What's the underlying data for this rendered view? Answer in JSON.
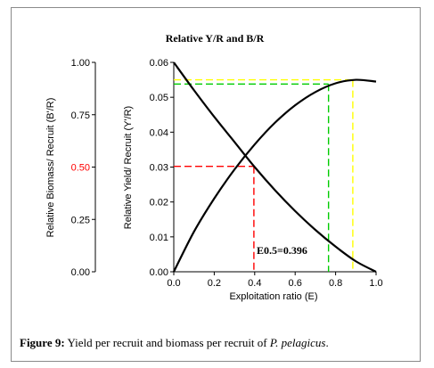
{
  "figure": {
    "caption_label": "Figure 9:",
    "caption_text": "Yield per recruit and biomass per recruit of",
    "caption_species": "P. pelagicus",
    "caption_end": "."
  },
  "chart_data": {
    "type": "line",
    "title": "Relative Y/R and B/R",
    "xlabel": "Exploitation ratio (E)",
    "ylabel_left": "Relative Biomass/ Recruit (B'/R)",
    "ylabel_right": "Relative Yield/ Recruit (Y'/R)",
    "xlim": [
      0.0,
      1.0
    ],
    "x_ticks": [
      "0.0",
      "0.2",
      "0.4",
      "0.6",
      "0.8",
      "1.0"
    ],
    "ylim_biomass": [
      0.0,
      1.0
    ],
    "y_ticks_biomass": [
      "0.00",
      "0.25",
      "0.50",
      "0.75",
      "1.00"
    ],
    "ylim_yield": [
      0.0,
      0.06
    ],
    "y_ticks_yield": [
      "0.00",
      "0.01",
      "0.02",
      "0.03",
      "0.04",
      "0.05",
      "0.06"
    ],
    "highlight_tick_color": "#ff0000",
    "series": [
      {
        "color": "#000000",
        "axis": "yield",
        "x": [
          0.0,
          0.1,
          0.2,
          0.3,
          0.4,
          0.5,
          0.6,
          0.7,
          0.8,
          0.9,
          1.0
        ],
        "values": [
          0.0,
          0.0115,
          0.021,
          0.0293,
          0.0365,
          0.0427,
          0.0477,
          0.0515,
          0.054,
          0.055,
          0.0545
        ]
      },
      {
        "color": "#000000",
        "axis": "biomass",
        "x": [
          0.0,
          0.1,
          0.2,
          0.3,
          0.4,
          0.5,
          0.6,
          0.7,
          0.8,
          0.9,
          1.0
        ],
        "values": [
          1.0,
          0.867,
          0.74,
          0.62,
          0.5,
          0.39,
          0.29,
          0.2,
          0.12,
          0.05,
          0.0
        ]
      }
    ],
    "reference_lines": [
      {
        "color": "#ff0000",
        "x": 0.396,
        "y_yield": 0.0302
      },
      {
        "color": "#00cc00",
        "x": 0.765,
        "y_yield": 0.0538
      },
      {
        "color": "#ffff00",
        "x": 0.885,
        "y_yield": 0.055
      }
    ],
    "annotation": "E0.5=0.396",
    "grid": false
  }
}
